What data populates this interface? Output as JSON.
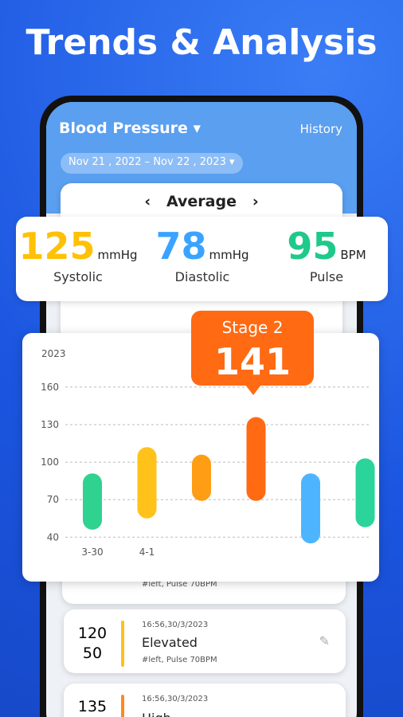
{
  "header": {
    "title": "Trends & Analysis"
  },
  "app": {
    "screen_title": "Blood Pressure",
    "history": "History",
    "date_from": "Nov 21 , 2022",
    "date_sep": "–",
    "date_to": "Nov 22 , 2023",
    "mode": "Average"
  },
  "stats": [
    {
      "value": "125",
      "unit": "mmHg",
      "label": "Systolic",
      "color": "#ffc107"
    },
    {
      "value": "78",
      "unit": "mmHg",
      "label": "Diastolic",
      "color": "#3aa3ff"
    },
    {
      "value": "95",
      "unit": "BPM",
      "label": "Pulse",
      "color": "#1fc98a"
    }
  ],
  "chart_data": {
    "type": "floating-bar",
    "year": "2023",
    "categories": [
      "3-30",
      "4-1",
      null,
      null,
      null,
      null
    ],
    "high": [
      91,
      112,
      106,
      136,
      91,
      103
    ],
    "low": [
      46,
      55,
      69,
      69,
      35,
      48
    ],
    "colors": [
      "#2fd28f",
      "#ffc21a",
      "#ff9d14",
      "#ff6a13",
      "#4db5ff",
      "#2ad49a"
    ],
    "ylim": [
      30,
      165
    ],
    "yticks": [
      40,
      70,
      100,
      130,
      160
    ],
    "grid": true,
    "callout": {
      "label": "Stage 2",
      "value": "141",
      "color": "#ff6a13"
    }
  },
  "records": [
    {
      "note": "#left, Pulse 70BPM"
    },
    {
      "systolic": "120",
      "diastolic": "50",
      "time": "16:56,30/3/2023",
      "status": "Elevated",
      "note": "#left, Pulse 70BPM",
      "color": "#ffc21a"
    },
    {
      "systolic": "135",
      "time": "16:56,30/3/2023",
      "status": "High",
      "color": "#ff8a1a"
    }
  ]
}
